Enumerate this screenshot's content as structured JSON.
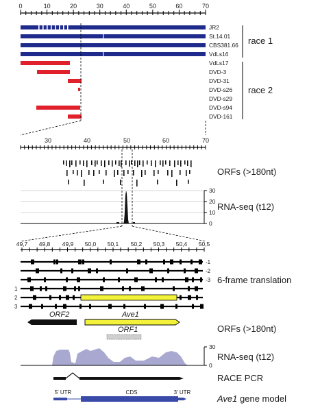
{
  "panel1": {
    "ticks": [
      "0",
      "10",
      "20",
      "30",
      "40",
      "50",
      "60",
      "70"
    ],
    "strains": [
      "JR2",
      "St.14.01",
      "CBS381.66",
      "VdLs16",
      "VdLs17",
      "DVD-3",
      "DVD-31",
      "DVD-s26",
      "DVD-s29",
      "DVD-s94",
      "DVD-161"
    ],
    "race1_label": "race 1",
    "race2_label": "race 2",
    "race1_color": "#1f2b8c",
    "race2_color": "#e0202a"
  },
  "panel2": {
    "ticks": [
      "30",
      "40",
      "50",
      "60",
      "70"
    ],
    "orfs_label": "ORFs (>180nt)",
    "rnaseq_label": "RNA-seq (t12)",
    "rna_ticks": [
      "30",
      "20",
      "10",
      "0"
    ]
  },
  "panel3": {
    "ticks": [
      "49,7",
      "49,8",
      "49,9",
      "50,0",
      "50,1",
      "50,2",
      "50,3",
      "50,4",
      "50,5"
    ],
    "frames": [
      "-1",
      "-2",
      "-3",
      "1",
      "2",
      "3"
    ],
    "frame_label": "6-frame translation",
    "orf2_label": "ORF2",
    "ave1_label": "Ave1",
    "orf1_label": "ORF1",
    "orfs_label": "ORFs (>180nt)",
    "rnaseq_label": "RNA-seq (t12)",
    "rna_ticks": [
      "30",
      "0"
    ],
    "race_label": "RACE PCR",
    "utr5_label": "5' UTR",
    "cds_label": "CDS",
    "utr3_label": "3' UTR",
    "gene_model_name": "Ave1",
    "gene_model_suffix": " gene model",
    "ave1_color": "#f2f23a",
    "rna_color": "#a8a8d0",
    "gene_color": "#3a4aa8"
  }
}
